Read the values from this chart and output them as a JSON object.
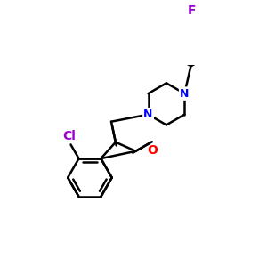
{
  "bg_color": "#ffffff",
  "bond_color": "#000000",
  "cl_color": "#9900cc",
  "n_color": "#0000ff",
  "o_color": "#ff0000",
  "f_color": "#9900cc",
  "line_width": 1.8,
  "figsize": [
    3.0,
    3.0
  ],
  "dpi": 100,
  "xlim": [
    -0.5,
    4.2
  ],
  "ylim": [
    -0.5,
    4.2
  ]
}
